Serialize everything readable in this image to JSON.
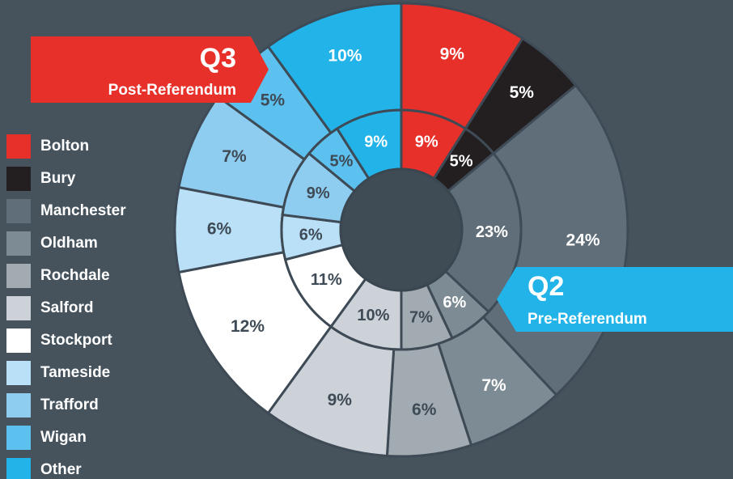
{
  "chart_data": {
    "type": "donut",
    "categories": [
      "Bolton",
      "Bury",
      "Manchester",
      "Oldham",
      "Rochdale",
      "Salford",
      "Stockport",
      "Tameside",
      "Trafford",
      "Wigan",
      "Other"
    ],
    "colors": [
      "#e8302a",
      "#231f20",
      "#5f6e79",
      "#7d8b95",
      "#a3abb2",
      "#cdd2d8",
      "#ffffff",
      "#b9e0f6",
      "#8fcdf0",
      "#5cc1ee",
      "#22b3e8"
    ],
    "series": [
      {
        "name": "Q3",
        "label": "Post-Referendum",
        "ring": "outer",
        "values": [
          9,
          5,
          24,
          7,
          6,
          9,
          12,
          6,
          7,
          5,
          10
        ],
        "value_labels": [
          "9%",
          "5%",
          "24%",
          "7%",
          "6%",
          "9%",
          "12%",
          "6%",
          "7%",
          "5%",
          "10%"
        ]
      },
      {
        "name": "Q2",
        "label": "Pre-Referendum",
        "ring": "inner",
        "values": [
          9,
          5,
          23,
          6,
          7,
          10,
          11,
          6,
          9,
          5,
          9
        ],
        "value_labels": [
          "9%",
          "5%",
          "23%",
          "6%",
          "7%",
          "10%",
          "11%",
          "6%",
          "9%",
          "5%",
          "9%"
        ]
      }
    ]
  }
}
